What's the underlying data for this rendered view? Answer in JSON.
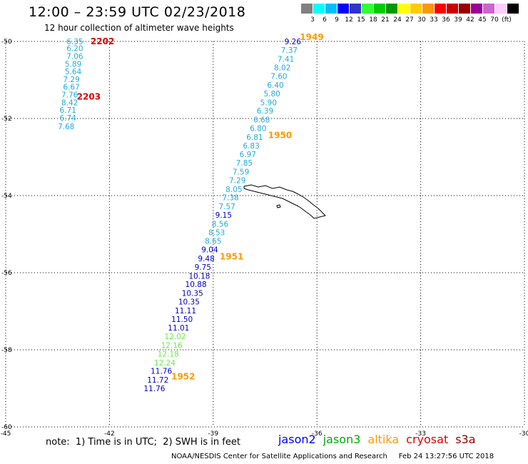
{
  "header": {
    "title": "12:00 – 23:59 UTC 02/23/2018",
    "subtitle": "12 hour collection of altimeter wave heights"
  },
  "scale": {
    "colors": [
      "#808080",
      "#00ffff",
      "#00bfff",
      "#0000ff",
      "#3333cc",
      "#33ff33",
      "#00cc00",
      "#009900",
      "#ffff00",
      "#ffcc00",
      "#ff9900",
      "#ff0000",
      "#cc0000",
      "#990000",
      "#990099",
      "#cc66cc",
      "#ffccff",
      "#000000"
    ],
    "labels": [
      "3",
      "6",
      "9",
      "12",
      "15",
      "18",
      "21",
      "24",
      "27",
      "30",
      "33",
      "36",
      "39",
      "42",
      "45",
      "70",
      "(ft)"
    ]
  },
  "chart_data": {
    "type": "map",
    "x_ticks": [
      "-45",
      "-42",
      "-39",
      "-36",
      "-33",
      "-30"
    ],
    "y_ticks": [
      "-50",
      "-52",
      "-54",
      "-56",
      "-58",
      "-60"
    ],
    "xlim": [
      -45,
      -30
    ],
    "ylim": [
      -60,
      -50
    ],
    "grid": "dotted",
    "landmass": "South Georgia island outline",
    "tracks": [
      {
        "pass_label": "2202",
        "pass_label_color": "#dd0000",
        "points": [
          {
            "lon": -43.0,
            "lat": -50.0,
            "swh": "6.35",
            "color": "#22aadd"
          },
          {
            "lon": -43.0,
            "lat": -50.18,
            "swh": "6.20",
            "color": "#22aadd"
          },
          {
            "lon": -43.0,
            "lat": -50.38,
            "swh": "7.06",
            "color": "#22aadd"
          },
          {
            "lon": -43.05,
            "lat": -50.58,
            "swh": "5.89",
            "color": "#22aadd"
          },
          {
            "lon": -43.05,
            "lat": -50.78,
            "swh": "5.64",
            "color": "#22aadd"
          },
          {
            "lon": -43.1,
            "lat": -50.98,
            "swh": "7.29",
            "color": "#22aadd"
          },
          {
            "lon": -43.1,
            "lat": -51.18,
            "swh": "6.67",
            "color": "#22aadd"
          },
          {
            "lon": -43.15,
            "lat": -51.38,
            "swh": "7.76",
            "color": "#22aadd"
          },
          {
            "lon": -43.15,
            "lat": -51.58,
            "swh": "8.42",
            "color": "#22aadd"
          },
          {
            "lon": -43.2,
            "lat": -51.78,
            "swh": "6.71",
            "color": "#22aadd"
          },
          {
            "lon": -43.2,
            "lat": -51.98,
            "swh": "6.74",
            "color": "#22aadd"
          },
          {
            "lon": -43.25,
            "lat": -52.2,
            "swh": "7.68",
            "color": "#22aadd"
          }
        ]
      },
      {
        "pass_label": "2203",
        "pass_label_color": "#dd0000",
        "points": []
      },
      {
        "pass_label": "1949",
        "pass_label_color": "#ff9900",
        "points": [
          {
            "lon": -36.7,
            "lat": -50.0,
            "swh": "9.26",
            "color": "#0000cc"
          },
          {
            "lon": -36.8,
            "lat": -50.22,
            "swh": "7.37",
            "color": "#22aadd"
          },
          {
            "lon": -36.9,
            "lat": -50.45,
            "swh": "7.41",
            "color": "#22aadd"
          },
          {
            "lon": -37.0,
            "lat": -50.68,
            "swh": "8.02",
            "color": "#22aadd"
          },
          {
            "lon": -37.1,
            "lat": -50.9,
            "swh": "7.60",
            "color": "#22aadd"
          },
          {
            "lon": -37.2,
            "lat": -51.13,
            "swh": "6.40",
            "color": "#22aadd"
          },
          {
            "lon": -37.3,
            "lat": -51.35,
            "swh": "5.80",
            "color": "#22aadd"
          },
          {
            "lon": -37.4,
            "lat": -51.58,
            "swh": "5.90",
            "color": "#22aadd"
          },
          {
            "lon": -37.5,
            "lat": -51.8,
            "swh": "6.39",
            "color": "#22aadd"
          },
          {
            "lon": -37.6,
            "lat": -52.03,
            "swh": "6.68",
            "color": "#22aadd"
          }
        ]
      },
      {
        "pass_label": "1950",
        "pass_label_color": "#ff9900",
        "points": [
          {
            "lon": -37.7,
            "lat": -52.25,
            "swh": "6.80",
            "color": "#22aadd"
          },
          {
            "lon": -37.8,
            "lat": -52.48,
            "swh": "6.81",
            "color": "#22aadd"
          },
          {
            "lon": -37.9,
            "lat": -52.7,
            "swh": "6.83",
            "color": "#22aadd"
          },
          {
            "lon": -38.0,
            "lat": -52.93,
            "swh": "6.97",
            "color": "#22aadd"
          },
          {
            "lon": -38.1,
            "lat": -53.15,
            "swh": "7.85",
            "color": "#22aadd"
          },
          {
            "lon": -38.2,
            "lat": -53.38,
            "swh": "7.59",
            "color": "#22aadd"
          },
          {
            "lon": -38.3,
            "lat": -53.6,
            "swh": "7.29",
            "color": "#22aadd"
          },
          {
            "lon": -38.4,
            "lat": -53.83,
            "swh": "8.05",
            "color": "#22aadd"
          },
          {
            "lon": -38.5,
            "lat": -54.05,
            "swh": "7.38",
            "color": "#22aadd"
          },
          {
            "lon": -38.6,
            "lat": -54.28,
            "swh": "7.57",
            "color": "#22aadd"
          },
          {
            "lon": -38.7,
            "lat": -54.5,
            "swh": "9.15",
            "color": "#0000cc"
          },
          {
            "lon": -38.8,
            "lat": -54.73,
            "swh": "8.56",
            "color": "#22aadd"
          },
          {
            "lon": -38.9,
            "lat": -54.95,
            "swh": "8.53",
            "color": "#22aadd"
          },
          {
            "lon": -39.0,
            "lat": -55.18,
            "swh": "8.65",
            "color": "#22aadd"
          },
          {
            "lon": -39.1,
            "lat": -55.4,
            "swh": "9.04",
            "color": "#0000cc"
          }
        ]
      },
      {
        "pass_label": "1951",
        "pass_label_color": "#ff9900",
        "points": [
          {
            "lon": -39.2,
            "lat": -55.63,
            "swh": "9.48",
            "color": "#0000cc"
          },
          {
            "lon": -39.3,
            "lat": -55.85,
            "swh": "9.75",
            "color": "#0000cc"
          },
          {
            "lon": -39.4,
            "lat": -56.08,
            "swh": "10.18",
            "color": "#0000cc"
          },
          {
            "lon": -39.5,
            "lat": -56.3,
            "swh": "10.88",
            "color": "#0000cc"
          },
          {
            "lon": -39.6,
            "lat": -56.53,
            "swh": "10.35",
            "color": "#0000cc"
          },
          {
            "lon": -39.7,
            "lat": -56.75,
            "swh": "10.35",
            "color": "#0000cc"
          },
          {
            "lon": -39.8,
            "lat": -56.98,
            "swh": "11.11",
            "color": "#0000cc"
          },
          {
            "lon": -39.9,
            "lat": -57.2,
            "swh": "11.50",
            "color": "#0000cc"
          },
          {
            "lon": -40.0,
            "lat": -57.43,
            "swh": "11.01",
            "color": "#0000cc"
          },
          {
            "lon": -40.1,
            "lat": -57.65,
            "swh": "12.02",
            "color": "#66ee44"
          },
          {
            "lon": -40.2,
            "lat": -57.88,
            "swh": "12.16",
            "color": "#66ee44"
          },
          {
            "lon": -40.3,
            "lat": -58.1,
            "swh": "12.18",
            "color": "#66ee44"
          },
          {
            "lon": -40.4,
            "lat": -58.33,
            "swh": "12.24",
            "color": "#66ee44"
          },
          {
            "lon": -40.5,
            "lat": -58.55,
            "swh": "11.76",
            "color": "#0000cc"
          }
        ]
      },
      {
        "pass_label": "1952",
        "pass_label_color": "#ff9900",
        "points": [
          {
            "lon": -40.6,
            "lat": -58.78,
            "swh": "11.72",
            "color": "#0000cc"
          },
          {
            "lon": -40.7,
            "lat": -59.0,
            "swh": "11.76",
            "color": "#0000cc"
          }
        ]
      }
    ]
  },
  "footer": {
    "note": "note:  1) Time is in UTC;  2) SWH is in feet",
    "legend": [
      {
        "name": "jason2",
        "color": "#0000ff"
      },
      {
        "name": "jason3",
        "color": "#00aa00"
      },
      {
        "name": "altika",
        "color": "#ff9900"
      },
      {
        "name": "cryosat",
        "color": "#dd0000"
      },
      {
        "name": "s3a",
        "color": "#990000"
      }
    ],
    "credit": "NOAA/NESDIS Center for Satellite Applications and Research     Feb 24 13:27:56 UTC 2018"
  }
}
